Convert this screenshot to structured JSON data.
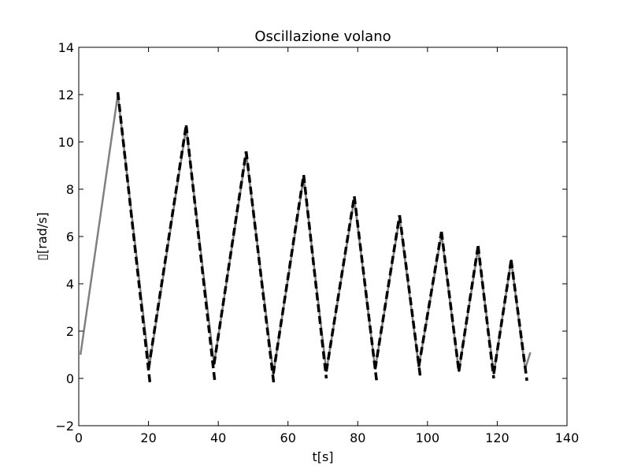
{
  "chart_data": {
    "type": "line",
    "title": "Oscillazione volano",
    "xlabel": "t[s]",
    "ylabel": "▯[rad/s]",
    "xlim": [
      0,
      140
    ],
    "ylim": [
      -2,
      14
    ],
    "xticks": [
      0,
      20,
      40,
      60,
      80,
      100,
      120,
      140
    ],
    "yticks": [
      -2,
      0,
      2,
      4,
      6,
      8,
      10,
      12,
      14
    ],
    "grid": false,
    "series": [
      {
        "style": "solid",
        "color": "#808080",
        "x": [
          0.5,
          11.2,
          20.2,
          30.8,
          38.8,
          48.0,
          55.8,
          64.5,
          71.0,
          79.0,
          85.0,
          92.0,
          97.5,
          104.0,
          109.0,
          114.5,
          119.0,
          124.0,
          128.0,
          129.5
        ],
        "y": [
          1.0,
          12.0,
          0.5,
          10.6,
          0.6,
          9.5,
          0.2,
          8.5,
          0.3,
          7.6,
          0.4,
          6.8,
          0.5,
          6.1,
          0.3,
          5.5,
          0.2,
          5.0,
          0.4,
          1.1
        ]
      },
      {
        "style": "dashed",
        "color": "#000000",
        "segments": [
          {
            "x": [
              11.2,
              20.5
            ],
            "y": [
              12.1,
              -0.3
            ]
          },
          {
            "x": [
              20.0,
              30.8
            ],
            "y": [
              0.4,
              10.7
            ]
          },
          {
            "x": [
              30.8,
              39.0
            ],
            "y": [
              10.7,
              -0.1
            ]
          },
          {
            "x": [
              38.8,
              48.0
            ],
            "y": [
              0.6,
              9.6
            ]
          },
          {
            "x": [
              48.0,
              56.0
            ],
            "y": [
              9.6,
              -0.3
            ]
          },
          {
            "x": [
              55.8,
              64.5
            ],
            "y": [
              0.2,
              8.6
            ]
          },
          {
            "x": [
              64.5,
              71.0
            ],
            "y": [
              8.6,
              0.0
            ]
          },
          {
            "x": [
              71.0,
              79.0
            ],
            "y": [
              0.3,
              7.7
            ]
          },
          {
            "x": [
              79.0,
              85.5
            ],
            "y": [
              7.7,
              -0.2
            ]
          },
          {
            "x": [
              85.0,
              92.0
            ],
            "y": [
              0.4,
              6.9
            ]
          },
          {
            "x": [
              92.0,
              98.0
            ],
            "y": [
              6.9,
              0.0
            ]
          },
          {
            "x": [
              97.5,
              104.0
            ],
            "y": [
              0.5,
              6.2
            ]
          },
          {
            "x": [
              104.0,
              109.0
            ],
            "y": [
              6.2,
              0.3
            ]
          },
          {
            "x": [
              109.0,
              114.5
            ],
            "y": [
              0.3,
              5.6
            ]
          },
          {
            "x": [
              114.5,
              119.0
            ],
            "y": [
              5.6,
              0.0
            ]
          },
          {
            "x": [
              119.0,
              124.0
            ],
            "y": [
              0.2,
              5.0
            ]
          },
          {
            "x": [
              124.0,
              128.5
            ],
            "y": [
              5.0,
              -0.1
            ]
          }
        ]
      }
    ]
  }
}
